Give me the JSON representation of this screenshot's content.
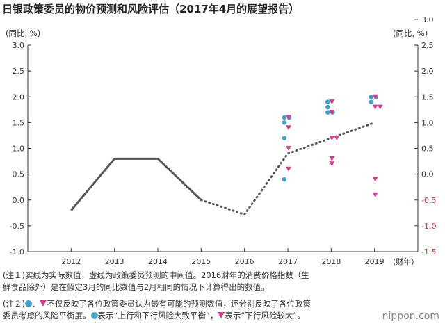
{
  "page": {
    "title": "日银政策委员的物价预测和风险评估（2017年4月的展望报告）",
    "watermark": "nippon.com"
  },
  "notes": {
    "n1_line1": "(注１)实线为实际数值，虚线为政策委员预测的中间值。2016财年的消费价格指数（生",
    "n1_line2": "鲜食品除外）是在假定3月的同比数值与2月相同的情况下计算得出的数值。",
    "n2_prefix": "(注２)",
    "n2_sep": "、",
    "n2_text1": "不仅反映了各位政策委员认为最有可能的预测数值，还分别反映了各位政策",
    "n2_line2a": "委员考虑的风险平衡度。",
    "n2_line2b": "表示“上行和下行风险大致平衡”，",
    "n2_line2c": "表示“下行风险较大”。"
  },
  "colors": {
    "actual_line": "#555555",
    "median_line": "#555555",
    "balanced_marker": "#4a9fc4",
    "downside_marker": "#d0418f",
    "negative_tick": "#d0303a",
    "axis": "#333333",
    "grid": "#999999"
  },
  "chart_data": {
    "type": "line",
    "title": "日银政策委员的物价预测和风险评估（2017年4月的展望报告）",
    "ylabel_left": "(同比, %)",
    "ylabel_right": "(同比, %)",
    "xlabel": "(财年)",
    "categories": [
      "2012",
      "2013",
      "2014",
      "2015",
      "2016",
      "2017",
      "2018",
      "2019"
    ],
    "ylim": [
      -1.0,
      3.0
    ],
    "yticks": [
      "-1.0",
      "-0.5",
      "0.0",
      "0.5",
      "1.0",
      "1.5",
      "2.0",
      "2.5",
      "3.0"
    ],
    "yticks_right": [
      "-1.5",
      "-1.0",
      "-0.5",
      "0.0",
      "0.5",
      "1.0",
      "1.5",
      "2.0",
      "2.5",
      "3.0"
    ],
    "grid": "none",
    "series": [
      {
        "kind": "actual",
        "style": "solid",
        "x": [
          "2012",
          "2013",
          "2014",
          "2015"
        ],
        "values": [
          -0.2,
          0.8,
          0.8,
          0.0
        ]
      },
      {
        "kind": "median",
        "style": "dotted",
        "x": [
          "2015",
          "2016",
          "2017",
          "2018",
          "2019"
        ],
        "values": [
          0.0,
          -0.28,
          0.9,
          1.2,
          1.5
        ]
      }
    ],
    "balanced_points": [
      {
        "x": "2017",
        "values": [
          1.6,
          1.6,
          1.5,
          1.2,
          0.4
        ]
      },
      {
        "x": "2018",
        "values": [
          1.9,
          1.8,
          1.7,
          1.7
        ]
      },
      {
        "x": "2019",
        "values": [
          2.0,
          2.0,
          1.9
        ]
      }
    ],
    "downside_points": [
      {
        "x": "2017",
        "values": [
          1.6,
          1.4,
          1.0,
          0.6
        ]
      },
      {
        "x": "2018",
        "values": [
          1.9,
          1.7,
          1.2,
          1.2,
          0.8,
          0.7
        ]
      },
      {
        "x": "2019",
        "values": [
          2.0,
          1.8,
          1.8,
          0.4,
          0.1
        ]
      }
    ]
  }
}
